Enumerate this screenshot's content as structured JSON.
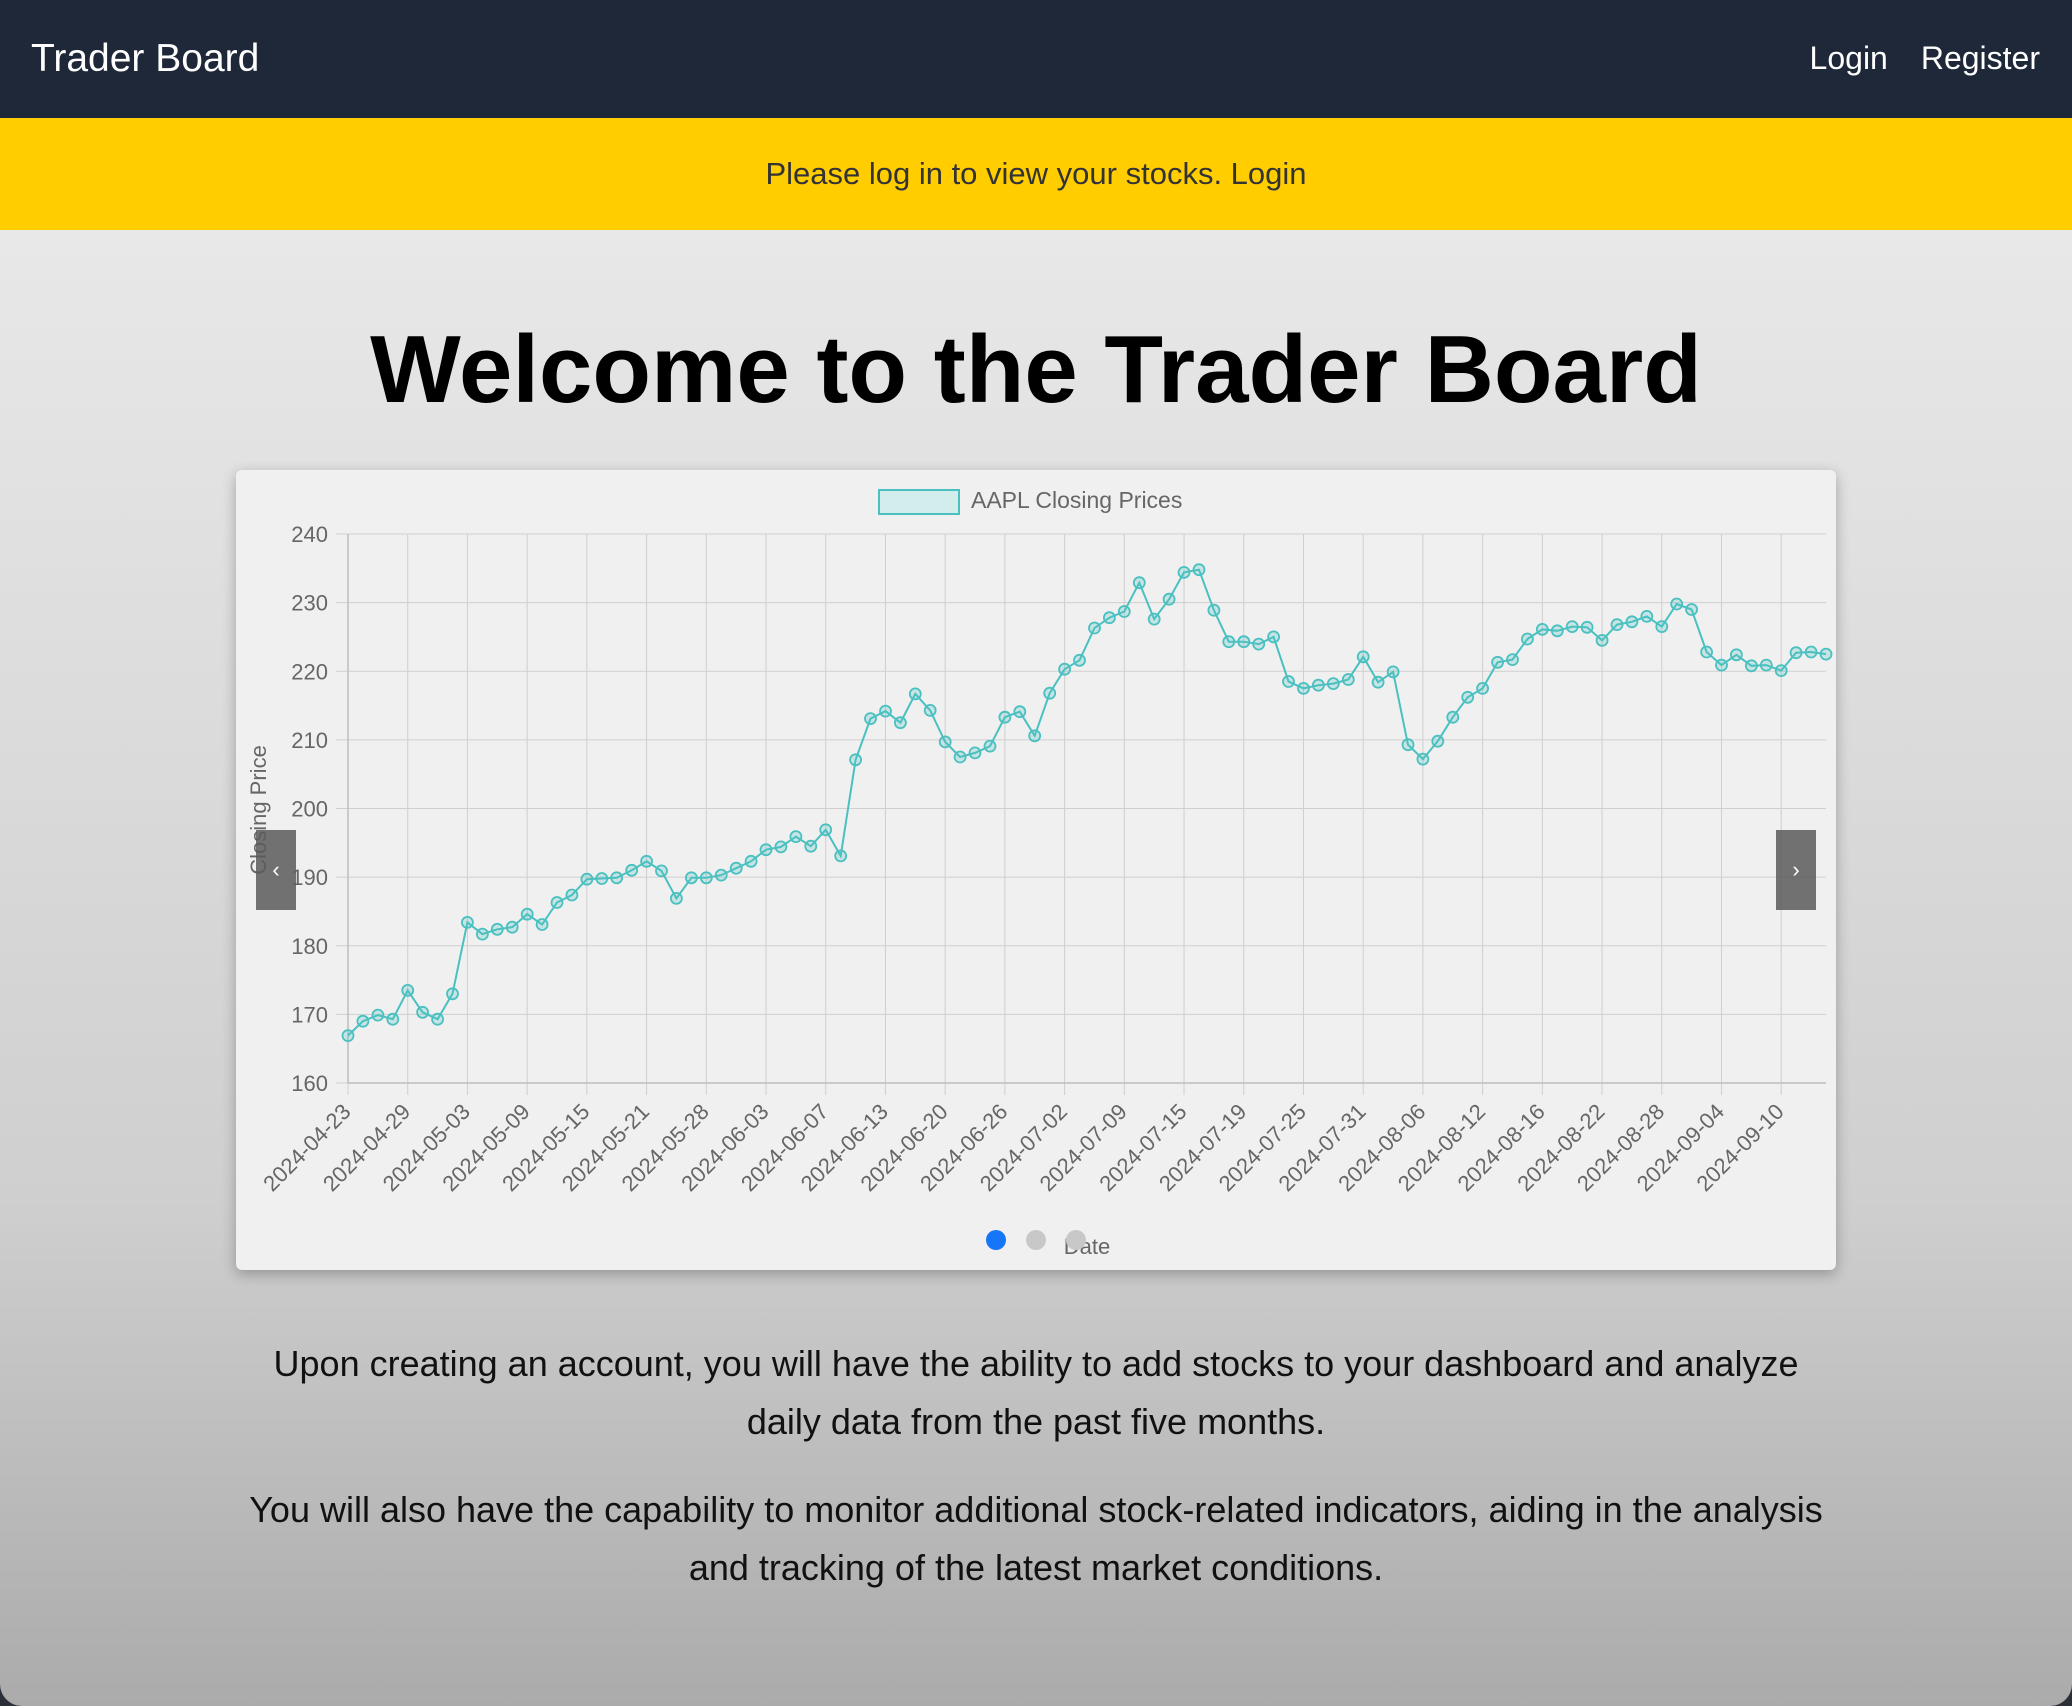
{
  "navbar": {
    "brand": "Trader Board",
    "links": [
      "Login",
      "Register"
    ]
  },
  "alert": {
    "text": "Please log in to view your stocks. ",
    "link": "Login"
  },
  "hero": {
    "title": "Welcome to the Trader Board"
  },
  "carousel": {
    "prev_label": "‹",
    "next_label": "›",
    "indicators": 3,
    "active_index": 0
  },
  "intro": {
    "p1": "Upon creating an account, you will have the ability to add stocks to your dashboard and analyze daily data from the past five months.",
    "p2": "You will also have the capability to monitor additional stock-related indicators, aiding in the analysis and tracking of the latest market conditions."
  },
  "chart_data": {
    "type": "line",
    "title": "",
    "xlabel": "Date",
    "ylabel": "Closing Price",
    "ylim": [
      160,
      240
    ],
    "yticks": [
      160,
      170,
      180,
      190,
      200,
      210,
      220,
      230,
      240
    ],
    "legend": "top",
    "grid": true,
    "x_tick_labels": [
      "2024-04-23",
      "2024-04-29",
      "2024-05-03",
      "2024-05-09",
      "2024-05-15",
      "2024-05-21",
      "2024-05-28",
      "2024-06-03",
      "2024-06-07",
      "2024-06-13",
      "2024-06-20",
      "2024-06-26",
      "2024-07-02",
      "2024-07-09",
      "2024-07-15",
      "2024-07-19",
      "2024-07-25",
      "2024-07-31",
      "2024-08-06",
      "2024-08-12",
      "2024-08-16",
      "2024-08-22",
      "2024-08-28",
      "2024-09-04",
      "2024-09-10"
    ],
    "colors": {
      "line": "#4bc0c0",
      "legend_fill": "#d3ecec"
    },
    "series": [
      {
        "name": "AAPL Closing Prices",
        "dates": [
          "2024-04-23",
          "2024-04-24",
          "2024-04-25",
          "2024-04-26",
          "2024-04-29",
          "2024-04-30",
          "2024-05-01",
          "2024-05-02",
          "2024-05-03",
          "2024-05-06",
          "2024-05-07",
          "2024-05-08",
          "2024-05-09",
          "2024-05-10",
          "2024-05-13",
          "2024-05-14",
          "2024-05-15",
          "2024-05-16",
          "2024-05-17",
          "2024-05-20",
          "2024-05-21",
          "2024-05-22",
          "2024-05-23",
          "2024-05-24",
          "2024-05-28",
          "2024-05-29",
          "2024-05-30",
          "2024-05-31",
          "2024-06-03",
          "2024-06-04",
          "2024-06-05",
          "2024-06-06",
          "2024-06-07",
          "2024-06-10",
          "2024-06-11",
          "2024-06-12",
          "2024-06-13",
          "2024-06-14",
          "2024-06-17",
          "2024-06-18",
          "2024-06-20",
          "2024-06-21",
          "2024-06-24",
          "2024-06-25",
          "2024-06-26",
          "2024-06-27",
          "2024-06-28",
          "2024-07-01",
          "2024-07-02",
          "2024-07-03",
          "2024-07-05",
          "2024-07-08",
          "2024-07-09",
          "2024-07-10",
          "2024-07-11",
          "2024-07-12",
          "2024-07-15",
          "2024-07-16",
          "2024-07-17",
          "2024-07-18",
          "2024-07-19",
          "2024-07-22",
          "2024-07-23",
          "2024-07-24",
          "2024-07-25",
          "2024-07-26",
          "2024-07-29",
          "2024-07-30",
          "2024-07-31",
          "2024-08-01",
          "2024-08-02",
          "2024-08-05",
          "2024-08-06",
          "2024-08-07",
          "2024-08-08",
          "2024-08-09",
          "2024-08-12",
          "2024-08-13",
          "2024-08-14",
          "2024-08-15",
          "2024-08-16",
          "2024-08-19",
          "2024-08-20",
          "2024-08-21",
          "2024-08-22",
          "2024-08-23",
          "2024-08-26",
          "2024-08-27",
          "2024-08-28",
          "2024-08-29",
          "2024-08-30",
          "2024-09-03",
          "2024-09-04",
          "2024-09-05",
          "2024-09-06",
          "2024-09-09",
          "2024-09-10",
          "2024-09-11",
          "2024-09-12",
          "2024-09-13"
        ],
        "values": [
          166.9,
          169.0,
          169.9,
          169.3,
          173.5,
          170.3,
          169.3,
          173.0,
          183.4,
          181.7,
          182.4,
          182.7,
          184.6,
          183.1,
          186.3,
          187.4,
          189.7,
          189.8,
          189.9,
          191.0,
          192.3,
          190.9,
          186.9,
          189.9,
          189.9,
          190.3,
          191.3,
          192.3,
          194.0,
          194.4,
          195.9,
          194.5,
          196.9,
          193.1,
          207.1,
          213.1,
          214.2,
          212.5,
          216.7,
          214.3,
          209.7,
          207.5,
          208.1,
          209.1,
          213.3,
          214.1,
          210.6,
          216.8,
          220.3,
          221.6,
          226.3,
          227.8,
          228.7,
          232.9,
          227.6,
          230.5,
          234.4,
          234.8,
          228.9,
          224.3,
          224.3,
          223.96,
          225.0,
          218.5,
          217.5,
          217.96,
          218.2,
          218.8,
          222.1,
          218.4,
          219.9,
          209.3,
          207.2,
          209.8,
          213.3,
          216.2,
          217.5,
          221.3,
          221.7,
          224.7,
          226.1,
          225.9,
          226.5,
          226.4,
          224.5,
          226.8,
          227.2,
          228.0,
          226.5,
          229.8,
          229.0,
          222.8,
          220.9,
          222.4,
          220.8,
          220.9,
          220.1,
          222.7,
          222.8,
          222.5
        ]
      }
    ]
  }
}
